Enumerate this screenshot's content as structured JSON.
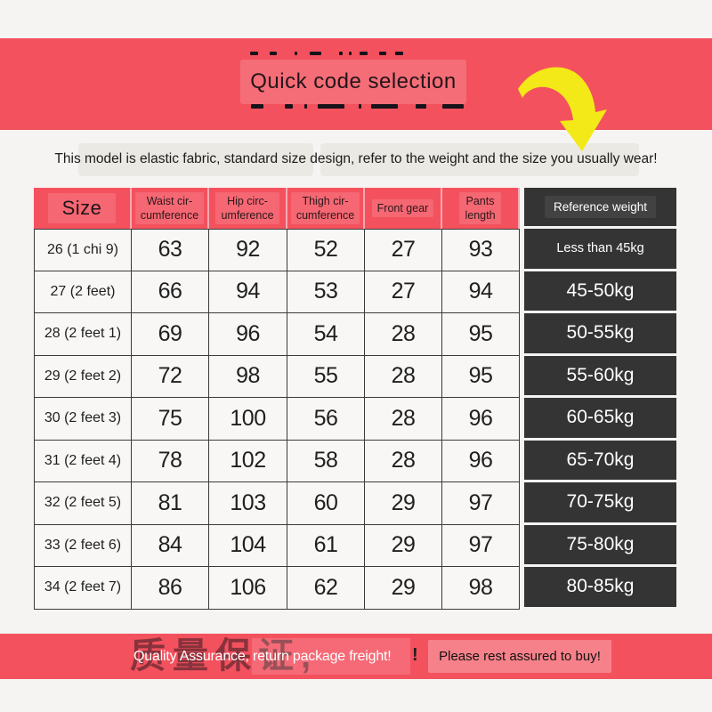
{
  "colors": {
    "banner_red": "#f4515e",
    "dark_column": "#343434",
    "arrow_yellow": "#f3e918",
    "page_background": "#f5f4f2",
    "grid_line": "#3b3b3b"
  },
  "title_banner": {
    "title": "Quick code selection"
  },
  "note": {
    "text": "This model is elastic fabric, standard size design, refer to the weight and the size you usually wear!"
  },
  "size_table": {
    "headers": [
      "Size",
      "Waist cir-\ncumference",
      "Hip circ-\numference",
      "Thigh cir-\ncumference",
      "Front gear",
      "Pants\nlength",
      "Reference weight"
    ],
    "rows": [
      [
        "26 (1 chi 9)",
        "63",
        "92",
        "52",
        "27",
        "93",
        "Less than 45kg"
      ],
      [
        "27 (2 feet)",
        "66",
        "94",
        "53",
        "27",
        "94",
        "45-50kg"
      ],
      [
        "28 (2 feet 1)",
        "69",
        "96",
        "54",
        "28",
        "95",
        "50-55kg"
      ],
      [
        "29 (2 feet 2)",
        "72",
        "98",
        "55",
        "28",
        "95",
        "55-60kg"
      ],
      [
        "30 (2 feet 3)",
        "75",
        "100",
        "56",
        "28",
        "96",
        "60-65kg"
      ],
      [
        "31 (2 feet 4)",
        "78",
        "102",
        "58",
        "28",
        "96",
        "65-70kg"
      ],
      [
        "32 (2 feet 5)",
        "81",
        "103",
        "60",
        "29",
        "97",
        "70-75kg"
      ],
      [
        "33 (2 feet 6)",
        "84",
        "104",
        "61",
        "29",
        "97",
        "75-80kg"
      ],
      [
        "34 (2 feet 7)",
        "86",
        "106",
        "62",
        "29",
        "98",
        "80-85kg"
      ]
    ]
  },
  "footer_banner": {
    "cn_remnant": "质量保证,",
    "message": "Quality Assurance, return package freight!",
    "exclamation": "!",
    "assurance": "Please rest assured to buy!"
  }
}
